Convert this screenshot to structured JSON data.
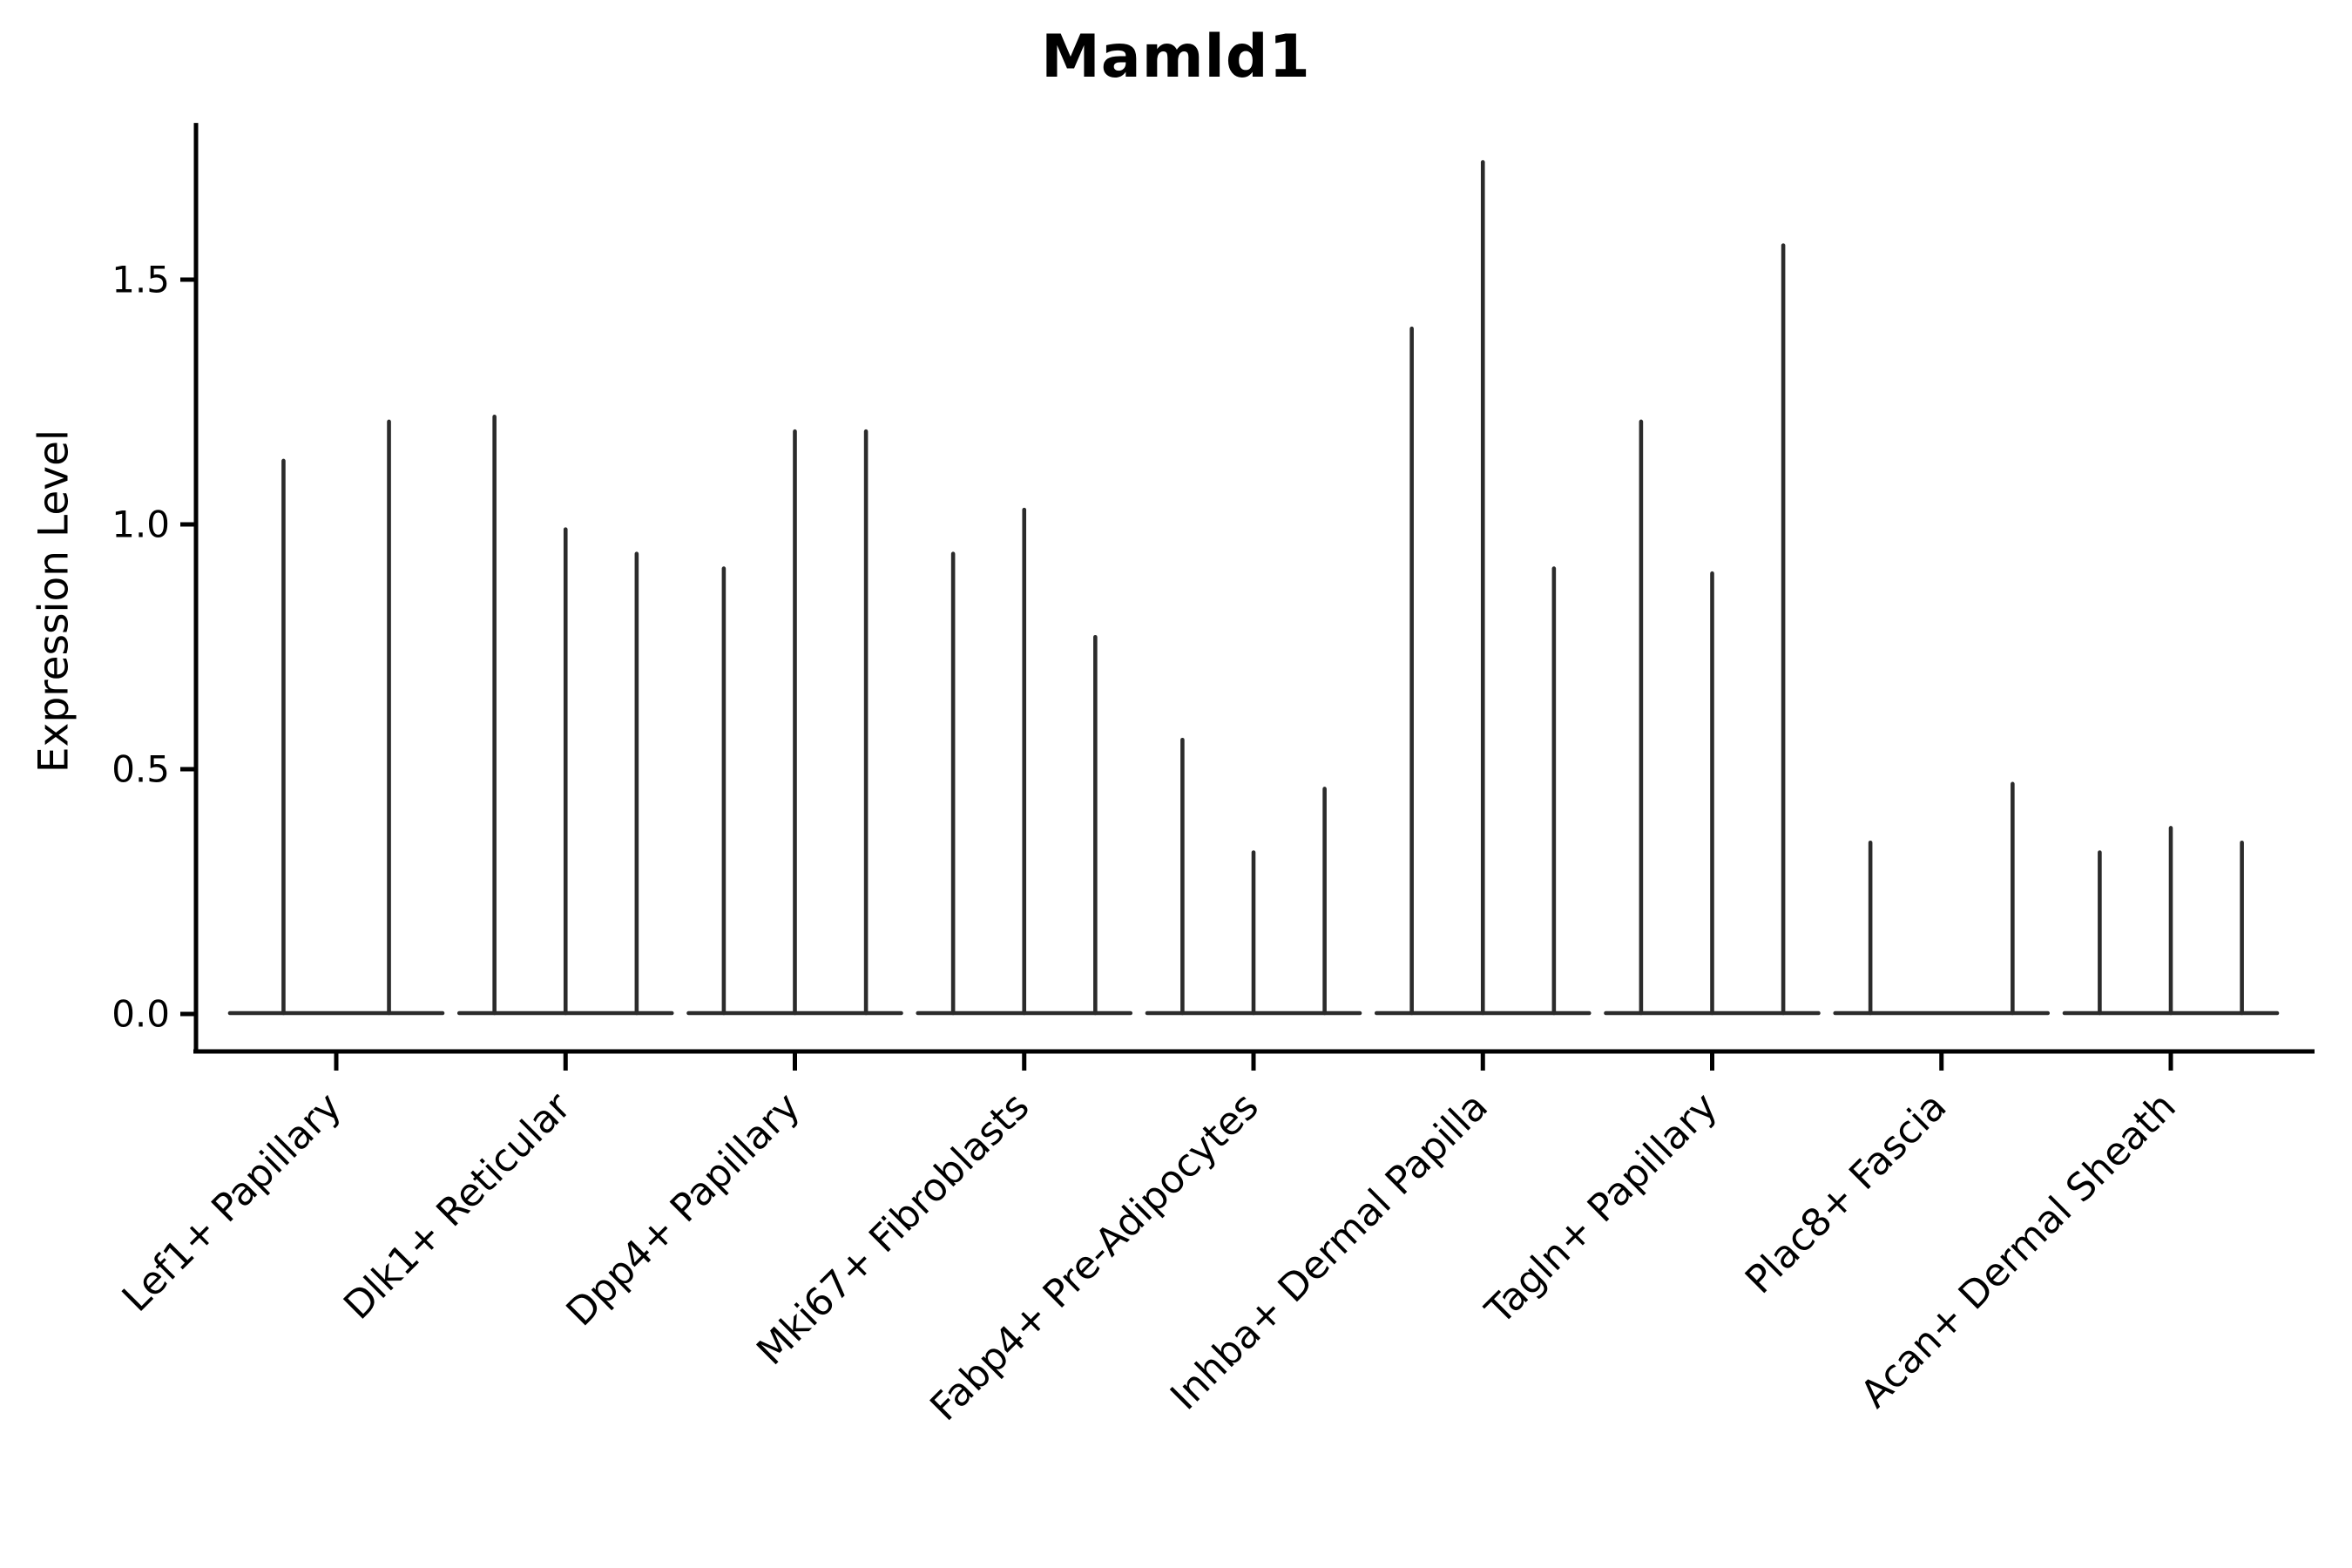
{
  "figure": {
    "background": "#ffffff",
    "text_color": "#000000",
    "axis_color": "#000000",
    "violin_color": "#2b2b2b"
  },
  "chart_data": {
    "type": "violin",
    "title": "Mamld1",
    "xlabel": "",
    "ylabel": "Expression Level",
    "legend": "none",
    "grid": false,
    "ylim": [
      -0.08,
      1.82
    ],
    "yticks": [
      0.0,
      0.5,
      1.0,
      1.5
    ],
    "ytick_labels": [
      "0.0",
      "0.5",
      "1.0",
      "1.5"
    ],
    "categories": [
      "Lef1+ Papillary",
      "Dlk1+ Reticular",
      "Dpp4+ Papillary",
      "Mki67+ Fibroblasts",
      "Fabp4+ Pre-Adipocytes",
      "Inhba+ Dermal Papilla",
      "Tagln+ Papillary",
      "Plac8+ Fascia",
      "Acan+ Dermal Sheath"
    ],
    "groups": [
      {
        "label": "Lef1+ Papillary",
        "violins": [
          {
            "offset": -0.23,
            "max": 1.13
          },
          {
            "offset": 0.23,
            "max": 1.21
          }
        ]
      },
      {
        "label": "Dlk1+ Reticular",
        "violins": [
          {
            "offset": -0.31,
            "max": 1.22
          },
          {
            "offset": 0.0,
            "max": 0.99
          },
          {
            "offset": 0.31,
            "max": 0.94
          }
        ]
      },
      {
        "label": "Dpp4+ Papillary",
        "violins": [
          {
            "offset": -0.31,
            "max": 0.91
          },
          {
            "offset": 0.0,
            "max": 1.19
          },
          {
            "offset": 0.31,
            "max": 1.19
          }
        ]
      },
      {
        "label": "Mki67+ Fibroblasts",
        "violins": [
          {
            "offset": -0.31,
            "max": 0.94
          },
          {
            "offset": 0.0,
            "max": 1.03
          },
          {
            "offset": 0.31,
            "max": 0.77
          }
        ]
      },
      {
        "label": "Fabp4+ Pre-Adipocytes",
        "violins": [
          {
            "offset": -0.31,
            "max": 0.56
          },
          {
            "offset": 0.0,
            "max": 0.33
          },
          {
            "offset": 0.31,
            "max": 0.46
          }
        ]
      },
      {
        "label": "Inhba+ Dermal Papilla",
        "violins": [
          {
            "offset": -0.31,
            "max": 1.4
          },
          {
            "offset": 0.0,
            "max": 1.74
          },
          {
            "offset": 0.31,
            "max": 0.91
          }
        ]
      },
      {
        "label": "Tagln+ Papillary",
        "violins": [
          {
            "offset": -0.31,
            "max": 1.21
          },
          {
            "offset": 0.0,
            "max": 0.9
          },
          {
            "offset": 0.31,
            "max": 1.57
          }
        ]
      },
      {
        "label": "Plac8+ Fascia",
        "violins": [
          {
            "offset": -0.31,
            "max": 0.35
          },
          {
            "offset": 0.0,
            "max": 0.0
          },
          {
            "offset": 0.31,
            "max": 0.47
          }
        ]
      },
      {
        "label": "Acan+ Dermal Sheath",
        "violins": [
          {
            "offset": -0.31,
            "max": 0.33
          },
          {
            "offset": 0.0,
            "max": 0.38
          },
          {
            "offset": 0.31,
            "max": 0.35
          }
        ]
      }
    ]
  }
}
